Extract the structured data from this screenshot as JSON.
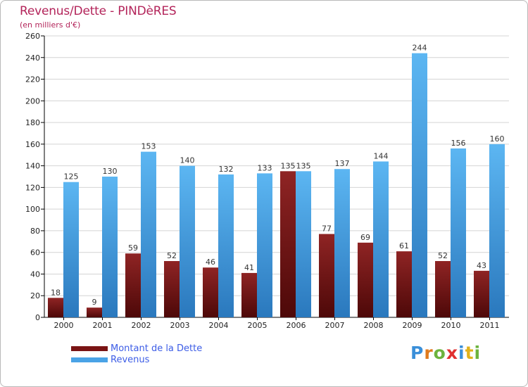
{
  "chart_data": {
    "type": "bar",
    "title": "Revenus/Dette - PINDèRES",
    "subtitle": "(en milliers d'€)",
    "categories": [
      "2000",
      "2001",
      "2002",
      "2003",
      "2004",
      "2005",
      "2006",
      "2007",
      "2008",
      "2009",
      "2010",
      "2011"
    ],
    "series": [
      {
        "name": "Montant de la Dette",
        "color": "#7a1414",
        "values": [
          18,
          9,
          59,
          52,
          46,
          41,
          135,
          77,
          69,
          61,
          52,
          43
        ]
      },
      {
        "name": "Revenus",
        "color": "#4aa3e6",
        "values": [
          125,
          130,
          153,
          140,
          132,
          133,
          135,
          137,
          144,
          244,
          156,
          160
        ]
      }
    ],
    "ylim": [
      0,
      260
    ],
    "yticks": [
      0,
      20,
      40,
      60,
      80,
      100,
      120,
      140,
      160,
      180,
      200,
      220,
      240,
      260
    ],
    "grid": true,
    "legend": "bottom-left"
  },
  "logo": {
    "letters": [
      "P",
      "r",
      "o",
      "x",
      "i",
      "t",
      "i"
    ],
    "colors": [
      "#3a8fd9",
      "#e07a1c",
      "#6cb33e",
      "#e03030",
      "#3a8fd9",
      "#e0b21c",
      "#6cb33e"
    ]
  }
}
